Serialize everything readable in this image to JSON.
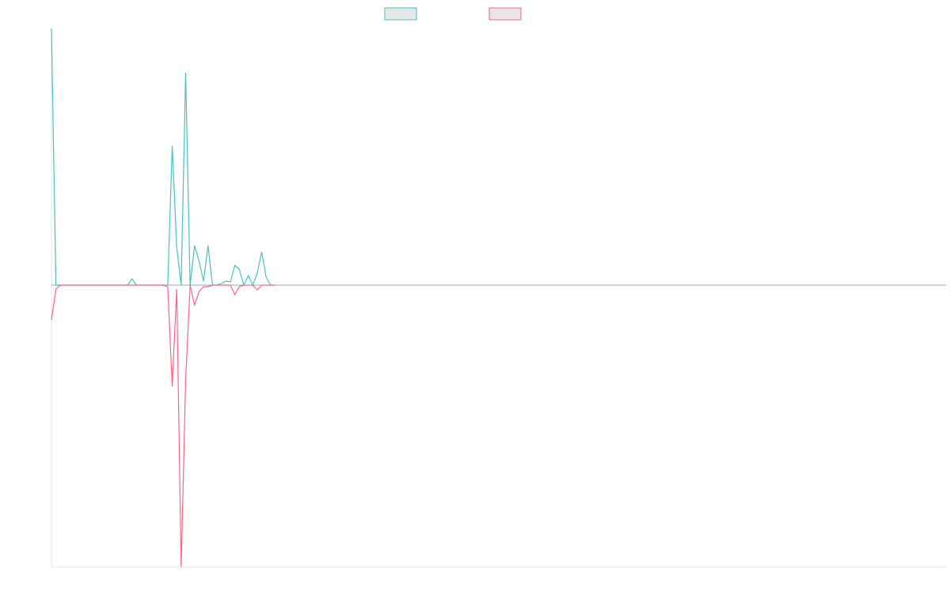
{
  "chart_data": {
    "type": "line",
    "x": [
      0,
      1,
      2,
      3,
      4,
      5,
      6,
      7,
      8,
      9,
      10,
      11,
      12,
      13,
      14,
      15,
      16,
      17,
      18,
      19,
      20,
      21,
      22,
      23,
      24,
      25,
      26,
      27,
      28,
      29,
      30,
      31,
      32,
      33,
      34,
      35,
      36,
      37,
      38,
      39,
      40,
      41,
      42,
      43,
      44,
      45,
      46,
      47,
      48,
      49,
      50
    ],
    "xlim": [
      0,
      200
    ],
    "ylim": [
      -356,
      324
    ],
    "grid": false,
    "legend": "top",
    "series": [
      {
        "color": "#4bc0c0",
        "values": [
          324,
          0,
          0,
          0,
          0,
          0,
          0,
          0,
          0,
          0,
          0,
          0,
          0,
          0,
          0,
          0,
          0,
          0,
          8,
          0,
          0,
          0,
          0,
          0,
          0,
          0,
          0,
          176,
          48,
          0,
          268,
          0,
          50,
          30,
          5,
          50,
          0,
          0,
          2,
          5,
          4,
          25,
          20,
          0,
          12,
          0,
          15,
          42,
          10,
          0,
          0
        ]
      },
      {
        "color": "#ff6384",
        "values": [
          -44,
          -5,
          0,
          0,
          0,
          0,
          0,
          0,
          0,
          0,
          0,
          0,
          0,
          0,
          0,
          0,
          0,
          0,
          0,
          0,
          0,
          0,
          0,
          0,
          0,
          0,
          -2,
          -128,
          -5,
          -356,
          -120,
          0,
          -25,
          -8,
          -2,
          -2,
          0,
          0,
          0,
          0,
          0,
          -12,
          -2,
          0,
          0,
          0,
          -6,
          0,
          0,
          0,
          0
        ]
      }
    ]
  }
}
